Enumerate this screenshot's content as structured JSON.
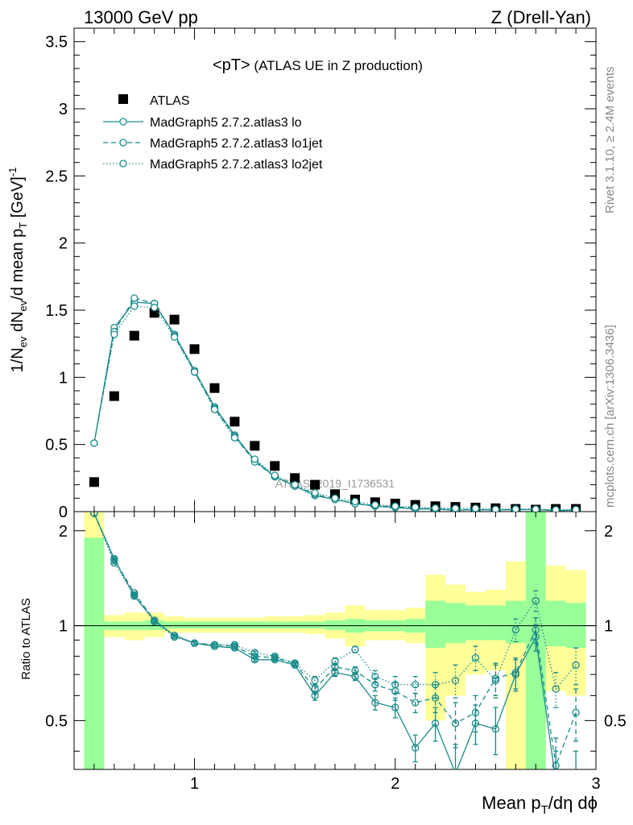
{
  "header": {
    "left": "13000 GeV pp",
    "right": "Z (Drell-Yan)"
  },
  "side_labels": {
    "rivet": "Rivet 3.1.10, ≥ 2.4M events",
    "mcplots": "mcplots.cern.ch [arXiv:1306.3436]"
  },
  "watermark": "ATLAS_2019_I1736531",
  "colors": {
    "data": "#000000",
    "mc": "#1a8a8a",
    "band_inner": "#99ff99",
    "band_outer": "#ffff99"
  },
  "chart_data": [
    {
      "type": "scatter",
      "panel": "main",
      "title_main": "<pT>",
      "title_sub": " (ATLAS UE in Z production)",
      "ylabel": "1/N_ev dN_ev/d mean p_T [GeV]^-1",
      "xlim": [
        0.4,
        3.0
      ],
      "ylim": [
        0,
        3.6
      ],
      "yticks": [
        "0",
        "0.5",
        "1",
        "1.5",
        "2",
        "2.5",
        "3",
        "3.5"
      ],
      "x": [
        0.5,
        0.6,
        0.7,
        0.8,
        0.9,
        1.0,
        1.1,
        1.2,
        1.3,
        1.4,
        1.5,
        1.6,
        1.7,
        1.8,
        1.9,
        2.0,
        2.1,
        2.2,
        2.3,
        2.4,
        2.5,
        2.6,
        2.7,
        2.8,
        2.9
      ],
      "legend": [
        {
          "label": "ATLAS"
        },
        {
          "label": "MadGraph5 2.7.2.atlas3 lo"
        },
        {
          "label": "MadGraph5 2.7.2.atlas3 lo1jet"
        },
        {
          "label": "MadGraph5 2.7.2.atlas3 lo2jet"
        }
      ],
      "series": [
        {
          "name": "ATLAS",
          "style": "square",
          "values": [
            0.22,
            0.86,
            1.31,
            1.48,
            1.43,
            1.21,
            0.92,
            0.67,
            0.49,
            0.34,
            0.25,
            0.2,
            0.13,
            0.09,
            0.07,
            0.06,
            0.05,
            0.04,
            0.035,
            0.03,
            0.025,
            0.02,
            0.015,
            0.02,
            0.02
          ]
        },
        {
          "name": "MadGraph5 2.7.2.atlas3 lo",
          "style": "solid",
          "values": [
            0.51,
            1.37,
            1.56,
            1.55,
            1.32,
            1.05,
            0.78,
            0.57,
            0.38,
            0.26,
            0.19,
            0.12,
            0.09,
            0.06,
            0.04,
            0.03,
            0.02,
            0.02,
            0.01,
            0.015,
            0.012,
            0.015,
            0.015,
            0.008,
            0.01
          ]
        },
        {
          "name": "MadGraph5 2.7.2.atlas3 lo1jet",
          "style": "dashed",
          "values": [
            0.51,
            1.34,
            1.59,
            1.55,
            1.31,
            1.04,
            0.77,
            0.56,
            0.37,
            0.26,
            0.19,
            0.13,
            0.09,
            0.06,
            0.045,
            0.035,
            0.025,
            0.02,
            0.015,
            0.015,
            0.012,
            0.014,
            0.018,
            0.008,
            0.011
          ]
        },
        {
          "name": "MadGraph5 2.7.2.atlas3 lo2jet",
          "style": "dotted",
          "values": [
            0.51,
            1.32,
            1.53,
            1.52,
            1.3,
            1.04,
            0.76,
            0.55,
            0.39,
            0.27,
            0.2,
            0.14,
            0.1,
            0.075,
            0.05,
            0.04,
            0.033,
            0.026,
            0.024,
            0.024,
            0.017,
            0.019,
            0.018,
            0.013,
            0.015
          ]
        }
      ]
    },
    {
      "type": "scatter",
      "panel": "ratio",
      "ylabel": "Ratio to ATLAS",
      "xlabel": "Mean p_T/dη dϕ",
      "xlim": [
        0.4,
        3.0
      ],
      "ylim": [
        0.35,
        2.3
      ],
      "xticks": [
        "1",
        "2",
        "3"
      ],
      "yticks": [
        "0.5",
        "1",
        "2"
      ],
      "x": [
        0.5,
        0.6,
        0.7,
        0.8,
        0.9,
        1.0,
        1.1,
        1.2,
        1.3,
        1.4,
        1.5,
        1.6,
        1.7,
        1.8,
        1.9,
        2.0,
        2.1,
        2.2,
        2.3,
        2.4,
        2.5,
        2.6,
        2.7,
        2.8,
        2.9
      ],
      "band_edges": [
        0.45,
        0.55,
        0.65,
        0.75,
        0.85,
        0.95,
        1.05,
        1.15,
        1.25,
        1.35,
        1.45,
        1.55,
        1.65,
        1.75,
        1.85,
        1.95,
        2.05,
        2.15,
        2.25,
        2.35,
        2.45,
        2.55,
        2.65,
        2.75,
        2.85,
        2.95
      ],
      "band_inner": [
        [
          0.35,
          1.9
        ],
        [
          0.97,
          1.03
        ],
        [
          0.97,
          1.03
        ],
        [
          0.97,
          1.04
        ],
        [
          0.98,
          1.03
        ],
        [
          0.98,
          1.03
        ],
        [
          0.98,
          1.03
        ],
        [
          0.98,
          1.03
        ],
        [
          0.98,
          1.03
        ],
        [
          0.98,
          1.03
        ],
        [
          0.98,
          1.03
        ],
        [
          0.98,
          1.03
        ],
        [
          0.97,
          1.04
        ],
        [
          0.95,
          1.05
        ],
        [
          0.96,
          1.04
        ],
        [
          0.96,
          1.04
        ],
        [
          0.95,
          1.05
        ],
        [
          0.85,
          1.2
        ],
        [
          0.88,
          1.18
        ],
        [
          0.9,
          1.16
        ],
        [
          0.9,
          1.16
        ],
        [
          0.88,
          1.2
        ],
        [
          0.35,
          2.3
        ],
        [
          0.86,
          1.2
        ],
        [
          0.85,
          1.18
        ]
      ],
      "band_outer": [
        [
          0.35,
          2.3
        ],
        [
          0.92,
          1.08
        ],
        [
          0.9,
          1.1
        ],
        [
          0.92,
          1.1
        ],
        [
          0.95,
          1.07
        ],
        [
          0.95,
          1.06
        ],
        [
          0.95,
          1.06
        ],
        [
          0.95,
          1.06
        ],
        [
          0.95,
          1.06
        ],
        [
          0.95,
          1.07
        ],
        [
          0.95,
          1.07
        ],
        [
          0.94,
          1.08
        ],
        [
          0.91,
          1.1
        ],
        [
          0.86,
          1.16
        ],
        [
          0.9,
          1.12
        ],
        [
          0.9,
          1.12
        ],
        [
          0.88,
          1.14
        ],
        [
          0.5,
          1.45
        ],
        [
          0.6,
          1.35
        ],
        [
          0.7,
          1.28
        ],
        [
          0.72,
          1.3
        ],
        [
          0.35,
          1.6
        ],
        [
          0.35,
          2.3
        ],
        [
          0.62,
          1.55
        ],
        [
          0.6,
          1.5
        ]
      ],
      "series": [
        {
          "name": "MadGraph5 2.7.2.atlas3 lo",
          "style": "solid",
          "values": [
            2.27,
            1.63,
            1.24,
            1.04,
            0.93,
            0.88,
            0.86,
            0.85,
            0.78,
            0.78,
            0.75,
            0.6,
            0.71,
            0.69,
            0.57,
            0.55,
            0.41,
            0.49,
            0.34,
            0.49,
            0.47,
            0.7,
            0.92,
            0.32,
            0.3
          ],
          "err": [
            0,
            0.01,
            0.01,
            0.01,
            0.01,
            0.01,
            0.01,
            0.01,
            0.01,
            0.01,
            0.01,
            0.02,
            0.02,
            0.02,
            0.03,
            0.04,
            0.04,
            0.06,
            0.08,
            0.07,
            0.08,
            0.08,
            0.09,
            0.08,
            0.1
          ]
        },
        {
          "name": "MadGraph5 2.7.2.atlas3 lo1jet",
          "style": "dashed",
          "values": [
            2.27,
            1.62,
            1.27,
            1.04,
            0.93,
            0.88,
            0.87,
            0.86,
            0.8,
            0.79,
            0.76,
            0.63,
            0.74,
            0.72,
            0.65,
            0.62,
            0.57,
            0.59,
            0.49,
            0.53,
            0.68,
            0.71,
            0.97,
            0.36,
            0.53
          ],
          "err": [
            0,
            0.01,
            0.01,
            0.01,
            0.01,
            0.01,
            0.01,
            0.01,
            0.01,
            0.01,
            0.01,
            0.02,
            0.02,
            0.02,
            0.03,
            0.04,
            0.04,
            0.06,
            0.08,
            0.07,
            0.08,
            0.08,
            0.09,
            0.08,
            0.1
          ]
        },
        {
          "name": "MadGraph5 2.7.2.atlas3 lo2jet",
          "style": "dotted",
          "values": [
            2.27,
            1.58,
            1.25,
            1.03,
            0.92,
            0.88,
            0.87,
            0.87,
            0.82,
            0.8,
            0.76,
            0.67,
            0.77,
            0.84,
            0.69,
            0.65,
            0.65,
            0.65,
            0.67,
            0.79,
            0.67,
            0.97,
            1.2,
            0.63,
            0.75
          ],
          "err": [
            0,
            0.01,
            0.01,
            0.01,
            0.01,
            0.01,
            0.01,
            0.01,
            0.01,
            0.01,
            0.01,
            0.02,
            0.02,
            0.02,
            0.03,
            0.04,
            0.04,
            0.06,
            0.08,
            0.07,
            0.08,
            0.08,
            0.09,
            0.08,
            0.1
          ]
        }
      ]
    }
  ]
}
